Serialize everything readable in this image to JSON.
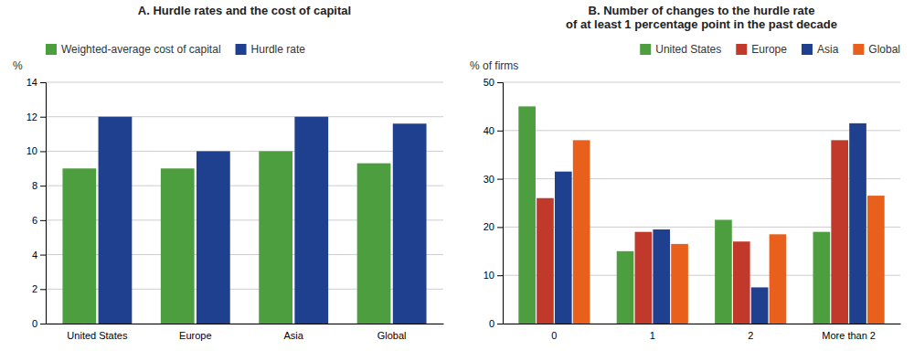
{
  "chart_data": [
    {
      "type": "bar",
      "title": "A. Hurdle rates and the cost of capital",
      "ylabel": "%",
      "categories": [
        "United States",
        "Europe",
        "Asia",
        "Global"
      ],
      "series": [
        {
          "name": "Weighted-average cost of capital",
          "color": "#4d9e3f",
          "values": [
            9.0,
            9.0,
            10.0,
            9.3
          ]
        },
        {
          "name": "Hurdle rate",
          "color": "#1f3f8f",
          "values": [
            12.0,
            10.0,
            12.0,
            11.6
          ]
        }
      ],
      "ylim": [
        0,
        14
      ],
      "yticks": [
        0,
        2,
        4,
        6,
        8,
        10,
        12,
        14
      ],
      "grid": true,
      "legend": "top-left"
    },
    {
      "type": "bar",
      "title": "B. Number of changes to the hurdle rate\nof at least 1 percentage point in the past decade",
      "ylabel": "% of firms",
      "categories": [
        "0",
        "1",
        "2",
        "More than 2"
      ],
      "series": [
        {
          "name": "United States",
          "color": "#4d9e3f",
          "values": [
            45.0,
            15.0,
            21.5,
            19.0
          ]
        },
        {
          "name": "Europe",
          "color": "#c0392b",
          "values": [
            26.0,
            19.0,
            17.0,
            38.0
          ]
        },
        {
          "name": "Asia",
          "color": "#1f3f8f",
          "values": [
            31.5,
            19.5,
            7.5,
            41.5
          ]
        },
        {
          "name": "Global",
          "color": "#e8601c",
          "values": [
            38.0,
            16.5,
            18.5,
            26.5
          ]
        }
      ],
      "ylim": [
        0,
        50
      ],
      "yticks": [
        0,
        10,
        20,
        30,
        40,
        50
      ],
      "grid": true,
      "legend": "top-right"
    }
  ]
}
